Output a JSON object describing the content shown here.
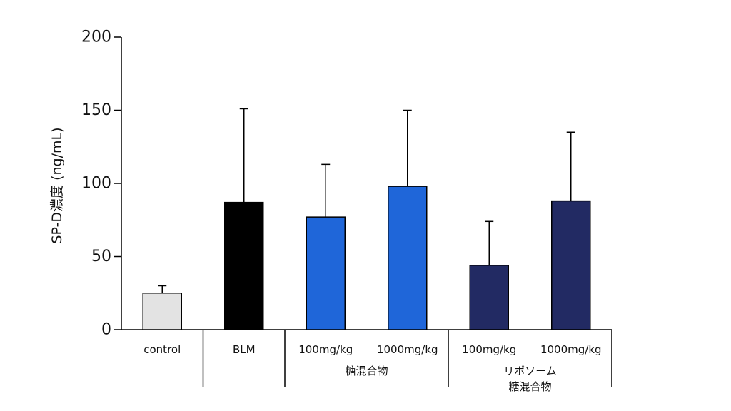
{
  "chart_data": {
    "type": "bar",
    "title": "",
    "xlabel": "",
    "ylabel": "SP-D濃度 (ng/mL)",
    "ylim": [
      0,
      200
    ],
    "yticks": [
      "0",
      "50",
      "100",
      "150",
      "200"
    ],
    "ytick_values": [
      0,
      50,
      100,
      150,
      200
    ],
    "grid": false,
    "categories": [
      "control",
      "BLM",
      "100mg/kg",
      "1000mg/kg",
      "100mg/kg",
      "1000mg/kg"
    ],
    "values": [
      25,
      87,
      77,
      98,
      44,
      88
    ],
    "error_upper": [
      30,
      151,
      113,
      150,
      74,
      135
    ],
    "colors": [
      "#e3e3e3",
      "#000000",
      "#1f66d9",
      "#1f66d9",
      "#222a63",
      "#222a63"
    ],
    "groups": [
      {
        "lines": [
          "糖混合物"
        ],
        "members": [
          2,
          3
        ]
      },
      {
        "lines": [
          "リポソーム",
          "糖混合物"
        ],
        "members": [
          4,
          5
        ]
      }
    ]
  }
}
